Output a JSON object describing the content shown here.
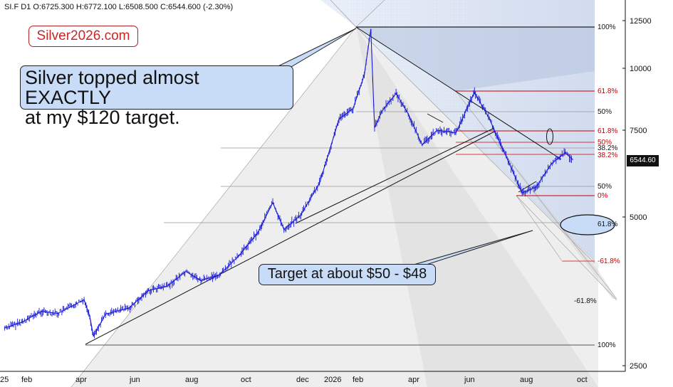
{
  "header": {
    "symbol": "SI.F",
    "interval": "D1",
    "open": "O:6725.300",
    "high": "H:6772.100",
    "low": "L:6508.500",
    "close": "C:6544.600",
    "change": "(-2.30%)"
  },
  "brand": "Silver2026.com",
  "annotations": {
    "top_callout": "Silver topped almost EXACTLY\nat my $120 target.",
    "target_callout": "Target at about $50 - $48"
  },
  "last_price_label": "6544.60",
  "colors": {
    "price_bars": "#1a1ad6",
    "fib_red": "#cc0000",
    "callout_fill": "#c8dcf7",
    "brand_text": "#c62828"
  },
  "chart_data": {
    "type": "line",
    "title": "",
    "xlabel": "",
    "ylabel": "",
    "yscale": "log",
    "ylim": [
      2400,
      13500
    ],
    "y_ticks": [
      "12500",
      "10000",
      "7500",
      "5000",
      "2500"
    ],
    "x_ticks": [
      "25",
      "feb",
      "apr",
      "jun",
      "aug",
      "oct",
      "dec",
      "2026",
      "feb",
      "apr",
      "jun",
      "aug",
      "oct"
    ],
    "series": [
      {
        "values": [
          {
            "x": "2025-01-02",
            "y": 2980
          },
          {
            "x": "2025-01-20",
            "y": 3060
          },
          {
            "x": "2025-02-10",
            "y": 3220
          },
          {
            "x": "2025-02-28",
            "y": 3190
          },
          {
            "x": "2025-03-20",
            "y": 3340
          },
          {
            "x": "2025-03-28",
            "y": 3400
          },
          {
            "x": "2025-04-03",
            "y": 3150
          },
          {
            "x": "2025-04-07",
            "y": 2870
          },
          {
            "x": "2025-04-20",
            "y": 3180
          },
          {
            "x": "2025-05-15",
            "y": 3270
          },
          {
            "x": "2025-06-05",
            "y": 3550
          },
          {
            "x": "2025-06-25",
            "y": 3620
          },
          {
            "x": "2025-07-15",
            "y": 3880
          },
          {
            "x": "2025-07-31",
            "y": 3720
          },
          {
            "x": "2025-08-20",
            "y": 3820
          },
          {
            "x": "2025-09-10",
            "y": 4180
          },
          {
            "x": "2025-09-30",
            "y": 4650
          },
          {
            "x": "2025-10-16",
            "y": 5350
          },
          {
            "x": "2025-10-28",
            "y": 4720
          },
          {
            "x": "2025-11-15",
            "y": 5050
          },
          {
            "x": "2025-12-05",
            "y": 5850
          },
          {
            "x": "2025-12-26",
            "y": 7900
          },
          {
            "x": "2026-01-10",
            "y": 8300
          },
          {
            "x": "2026-01-22",
            "y": 9700
          },
          {
            "x": "2026-01-29",
            "y": 12000
          },
          {
            "x": "2026-02-02",
            "y": 7600
          },
          {
            "x": "2026-02-10",
            "y": 8200
          },
          {
            "x": "2026-02-25",
            "y": 8900
          },
          {
            "x": "2026-03-10",
            "y": 8100
          },
          {
            "x": "2026-03-25",
            "y": 7000
          },
          {
            "x": "2026-04-10",
            "y": 7500
          },
          {
            "x": "2026-04-30",
            "y": 7400
          },
          {
            "x": "2026-05-20",
            "y": 8950
          },
          {
            "x": "2026-06-05",
            "y": 7900
          },
          {
            "x": "2026-06-25",
            "y": 6500
          },
          {
            "x": "2026-07-10",
            "y": 5600
          },
          {
            "x": "2026-07-25",
            "y": 5750
          },
          {
            "x": "2026-08-10",
            "y": 6400
          },
          {
            "x": "2026-08-25",
            "y": 6750
          },
          {
            "x": "2026-09-02",
            "y": 6544.6
          }
        ]
      }
    ],
    "fib_levels_left": [
      "100%",
      "50%",
      "50%"
    ],
    "fib_levels_right_black": [
      "100%",
      "38.2%",
      "61.8%",
      "-61.8%",
      "100%"
    ],
    "fib_levels_right_red": [
      "61.8%",
      "61.8%",
      "50%",
      "38.2%",
      "0%",
      "-61.8%"
    ],
    "grid": false
  }
}
